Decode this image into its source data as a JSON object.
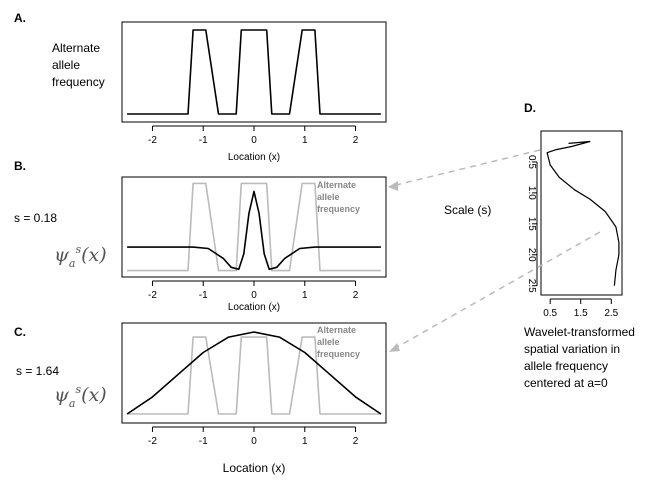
{
  "panels": {
    "A": {
      "letter": "A.",
      "ylabel": [
        "Alternate",
        "allele",
        "frequency"
      ],
      "xlabel": "Location (x)"
    },
    "B": {
      "letter": "B.",
      "scale_label": "s = 0.18",
      "psi_label": "ψ",
      "xlabel": "Location (x)",
      "overlay_label": [
        "Alternate",
        "allele",
        "frequency"
      ]
    },
    "C": {
      "letter": "C.",
      "scale_label": "s = 1.64",
      "psi_label": "ψ",
      "xlabel": "Location (x)",
      "overlay_label": [
        "Alternate",
        "allele",
        "frequency"
      ]
    },
    "D": {
      "letter": "D.",
      "ylabel": "Scale (s)",
      "xlabel": [
        "Wavelet-transformed",
        "spatial variation in",
        "allele frequency",
        "centered at a=0"
      ]
    }
  },
  "colors": {
    "main": "#000000",
    "overlay": "#bbbbbb",
    "arrow": "#bbbbbb",
    "psi": "#555555",
    "overlay_text": "#888888"
  },
  "chart_data": [
    {
      "type": "line",
      "panel": "A",
      "title": "",
      "xlabel": "Location (x)",
      "ylabel": "Alternate allele frequency",
      "xlim": [
        -2.6,
        2.6
      ],
      "ylim": [
        0,
        1
      ],
      "xticks": [
        -2,
        -1,
        0,
        1,
        2
      ],
      "x": [
        -2.5,
        -1.3,
        -1.2,
        -0.95,
        -0.7,
        -0.35,
        -0.25,
        0.0,
        0.25,
        0.35,
        0.7,
        0.95,
        1.2,
        1.3,
        2.5
      ],
      "y": [
        0,
        0,
        1,
        1,
        0,
        0,
        1,
        1,
        1,
        0,
        0,
        1,
        1,
        0,
        0
      ]
    },
    {
      "type": "line",
      "panel": "B",
      "title": "",
      "xlabel": "Location (x)",
      "xlim": [
        -2.6,
        2.6
      ],
      "ylim": [
        -0.35,
        1.05
      ],
      "xticks": [
        -2,
        -1,
        0,
        1,
        2
      ],
      "series": [
        {
          "name": "Alternate allele frequency",
          "role": "overlay",
          "x": [
            -2.5,
            -1.3,
            -1.2,
            -0.95,
            -0.7,
            -0.35,
            -0.25,
            0.0,
            0.25,
            0.35,
            0.7,
            0.95,
            1.2,
            1.3,
            2.5
          ],
          "y": [
            -0.3,
            -0.3,
            1.0,
            1.0,
            -0.3,
            -0.3,
            1.0,
            1.0,
            1.0,
            -0.3,
            -0.3,
            1.0,
            1.0,
            -0.3,
            -0.3
          ]
        },
        {
          "role": "wavelet",
          "x": [
            -2.5,
            -1.2,
            -0.9,
            -0.6,
            -0.45,
            -0.3,
            -0.2,
            -0.1,
            0.0,
            0.1,
            0.2,
            0.3,
            0.45,
            0.6,
            0.9,
            1.2,
            2.5
          ],
          "y": [
            0.05,
            0.05,
            0.03,
            -0.12,
            -0.25,
            -0.28,
            -0.05,
            0.55,
            0.88,
            0.55,
            -0.05,
            -0.28,
            -0.25,
            -0.12,
            0.03,
            0.05,
            0.05
          ]
        }
      ]
    },
    {
      "type": "line",
      "panel": "C",
      "title": "",
      "xlabel": "Location (x)",
      "xlim": [
        -2.6,
        2.6
      ],
      "ylim": [
        -0.05,
        1.05
      ],
      "xticks": [
        -2,
        -1,
        0,
        1,
        2
      ],
      "series": [
        {
          "name": "Alternate allele frequency",
          "role": "overlay",
          "x": [
            -2.5,
            -1.3,
            -1.2,
            -0.95,
            -0.7,
            -0.35,
            -0.25,
            0.0,
            0.25,
            0.35,
            0.7,
            0.95,
            1.2,
            1.3,
            2.5
          ],
          "y": [
            0.02,
            0.02,
            0.92,
            0.92,
            0.02,
            0.02,
            0.92,
            0.92,
            0.92,
            0.02,
            0.02,
            0.92,
            0.92,
            0.02,
            0.02
          ]
        },
        {
          "role": "wavelet",
          "x": [
            -2.5,
            -2.0,
            -1.5,
            -1.0,
            -0.5,
            0.0,
            0.5,
            1.0,
            1.5,
            2.0,
            2.5
          ],
          "y": [
            0.02,
            0.22,
            0.48,
            0.74,
            0.92,
            0.98,
            0.92,
            0.74,
            0.48,
            0.22,
            0.02
          ]
        }
      ]
    },
    {
      "type": "line",
      "panel": "D",
      "title": "",
      "xlabel": "Wavelet-transformed spatial variation in allele frequency centered at a=0",
      "ylabel": "Scale (s)",
      "xlim": [
        0.2,
        2.85
      ],
      "ylim": [
        0.0,
        2.65
      ],
      "y_reversed": true,
      "xticks": [
        0.5,
        1.5,
        2.5
      ],
      "yticks": [
        0.5,
        1.0,
        1.5,
        2.0,
        2.5
      ],
      "x": [
        1.1,
        1.8,
        1.2,
        0.7,
        0.4,
        0.5,
        0.8,
        1.3,
        1.8,
        2.3,
        2.65,
        2.75,
        2.75,
        2.65,
        2.6
      ],
      "y": [
        0.2,
        0.17,
        0.25,
        0.3,
        0.35,
        0.55,
        0.75,
        0.95,
        1.1,
        1.3,
        1.55,
        1.8,
        2.0,
        2.25,
        2.5
      ]
    }
  ]
}
